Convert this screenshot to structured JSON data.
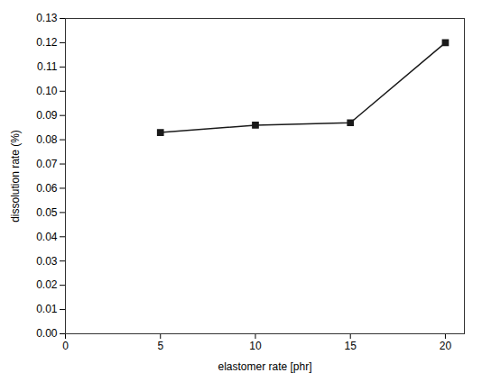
{
  "chart_data": {
    "type": "line",
    "xlabel": "elastomer rate [phr]",
    "ylabel": "dissolution rate (%)",
    "x": [
      5,
      10,
      15,
      20
    ],
    "values": [
      0.083,
      0.086,
      0.087,
      0.12
    ],
    "color": "#1a1a1a",
    "marker": "square",
    "line_style": "solid",
    "xlim": [
      0,
      21
    ],
    "ylim": [
      0.0,
      0.13
    ],
    "xticks": [
      0,
      5,
      10,
      15,
      20
    ],
    "yticks": [
      {
        "value": 0,
        "label": "0.00"
      },
      0.01,
      0.02,
      0.03,
      0.04,
      0.05,
      0.06,
      0.07,
      0.08,
      0.09,
      {
        "value": 0.1,
        "label": "0.10"
      },
      0.11,
      0.12,
      0.13
    ],
    "grid": false
  }
}
